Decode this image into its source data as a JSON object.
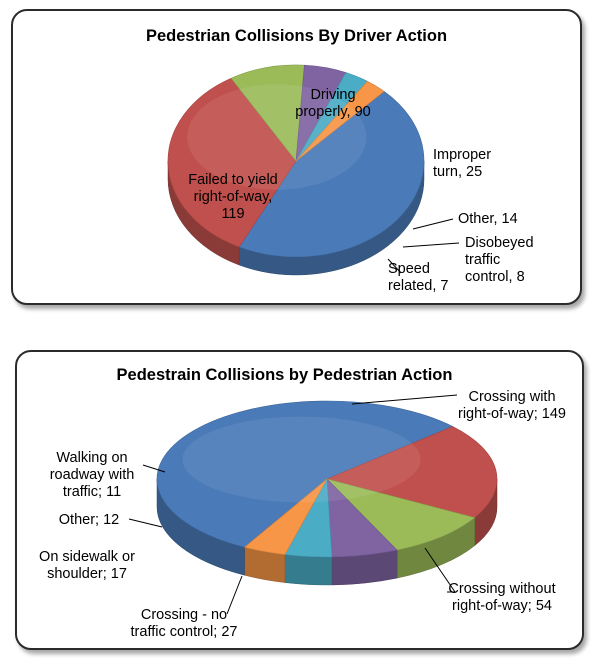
{
  "chart_data": [
    {
      "type": "pie",
      "title": "Pedestrian Collisions By Driver Action",
      "slices": [
        {
          "label": "Failed to yield right-of-way",
          "value": 119,
          "color": "#4a7ab8"
        },
        {
          "label": "Driving properly",
          "value": 90,
          "color": "#c0504d"
        },
        {
          "label": "Improper turn",
          "value": 25,
          "color": "#9bbb59"
        },
        {
          "label": "Other",
          "value": 14,
          "color": "#8064a2"
        },
        {
          "label": "Disobeyed traffic control",
          "value": 8,
          "color": "#4bacc6"
        },
        {
          "label": "Speed related",
          "value": 7,
          "color": "#f79646"
        }
      ],
      "labels": [
        [
          "Failed to yield",
          "right-of-way,",
          "119"
        ],
        [
          "Driving",
          "properly, 90"
        ],
        [
          "Improper",
          "turn, 25"
        ],
        [
          "Other, 14"
        ],
        [
          "Disobeyed",
          "traffic",
          "control, 8"
        ],
        [
          "Speed",
          "related, 7"
        ]
      ]
    },
    {
      "type": "pie",
      "title": "Pedestrain Collisions by Pedestrian Action",
      "slices": [
        {
          "label": "Crossing with right-of-way",
          "value": 149,
          "color": "#4a7ab8"
        },
        {
          "label": "Crossing without right-of-way",
          "value": 54,
          "color": "#c0504d"
        },
        {
          "label": "Crossing - no traffic control",
          "value": 27,
          "color": "#9bbb59"
        },
        {
          "label": "On sidewalk or shoulder",
          "value": 17,
          "color": "#8064a2"
        },
        {
          "label": "Other",
          "value": 12,
          "color": "#4bacc6"
        },
        {
          "label": "Walking on roadway with traffic",
          "value": 11,
          "color": "#f79646"
        }
      ],
      "labels": [
        [
          "Crossing with",
          "right-of-way;  149"
        ],
        [
          "Crossing without",
          "right-of-way;  54"
        ],
        [
          "Crossing - no",
          "traffic control; 27"
        ],
        [
          "On sidewalk or",
          "shoulder; 17"
        ],
        [
          "Other; 12"
        ],
        [
          "Walking on",
          "roadway with",
          "traffic; 11"
        ]
      ]
    }
  ]
}
